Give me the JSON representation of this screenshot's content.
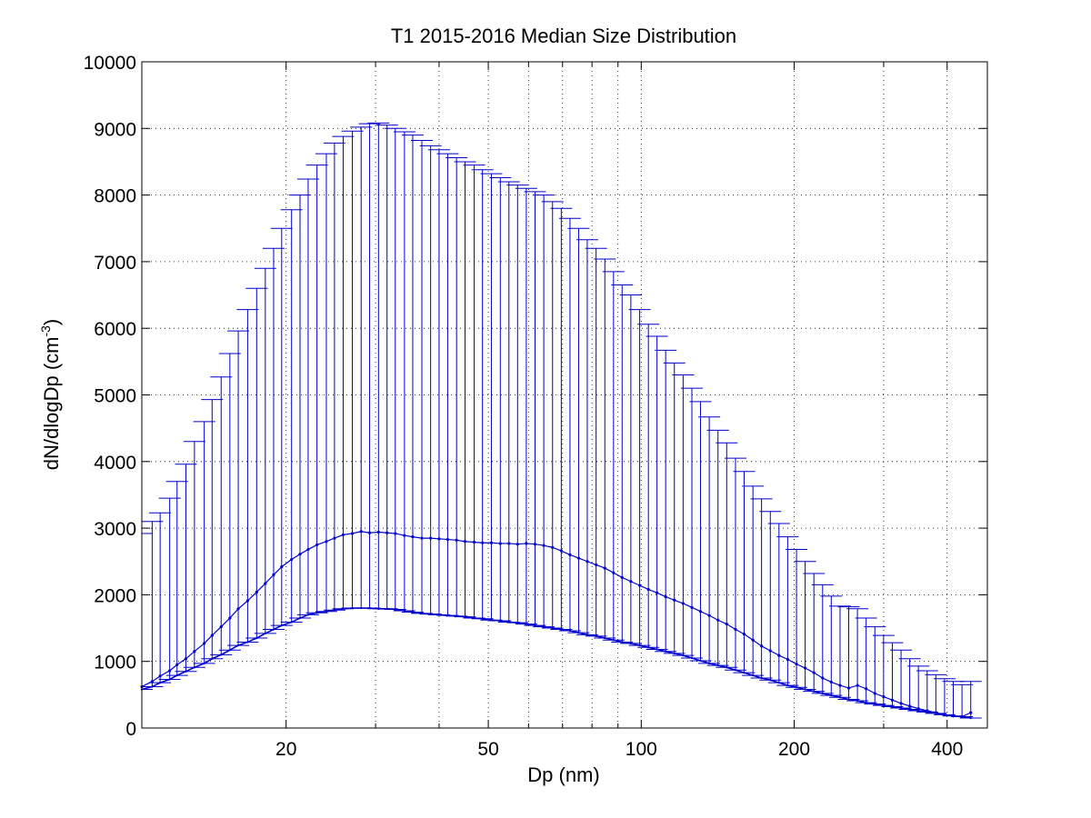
{
  "chart_data": {
    "type": "line",
    "title": "T1 2015-2016 Median Size Distribution",
    "xlabel": "Dp (nm)",
    "ylabel": "dN/dlogDp (cm",
    "ylabel_sup": "-3",
    "ylabel_close": ")",
    "x_scale": "log",
    "xlim": [
      10.4,
      480
    ],
    "ylim": [
      0,
      10000
    ],
    "x_ticks": [
      20,
      50,
      100,
      200,
      400
    ],
    "x_tick_labels": [
      "20",
      "50",
      "100",
      "200",
      "400"
    ],
    "y_ticks": [
      0,
      1000,
      2000,
      3000,
      4000,
      5000,
      6000,
      7000,
      8000,
      9000,
      10000
    ],
    "y_tick_labels": [
      "0",
      "1000",
      "2000",
      "3000",
      "4000",
      "5000",
      "6000",
      "7000",
      "8000",
      "9000",
      "10000"
    ],
    "grid": true,
    "colors": {
      "series": "#0000cc",
      "grid": "#000000",
      "axes": "#000000"
    },
    "series": [
      {
        "x": [
          10.4,
          10.9,
          11.3,
          11.8,
          12.2,
          12.7,
          13.2,
          13.8,
          14.3,
          14.9,
          15.5,
          16.1,
          16.8,
          17.5,
          18.2,
          18.9,
          19.6,
          20.5,
          21.3,
          22.1,
          23.0,
          24.0,
          24.9,
          25.9,
          27.0,
          28.1,
          29.2,
          30.4,
          31.6,
          32.8,
          34.2,
          35.5,
          37.0,
          38.5,
          40.0,
          41.6,
          43.3,
          45.0,
          46.9,
          48.7,
          50.7,
          52.8,
          54.9,
          57.1,
          59.4,
          61.8,
          64.3,
          66.9,
          69.6,
          72.4,
          75.3,
          78.3,
          81.5,
          84.8,
          88.2,
          91.7,
          95.4,
          99.3,
          103.3,
          107.4,
          111.7,
          116.2,
          120.9,
          125.8,
          130.8,
          136.1,
          141.6,
          147.3,
          153.3,
          159.4,
          165.9,
          172.5,
          179.5,
          186.7,
          194.2,
          202.1,
          210.2,
          218.7,
          227.5,
          236.6,
          246.2,
          256.1,
          266.4,
          277.1,
          288.3,
          299.9,
          312.0,
          324.6,
          337.6,
          351.2,
          365.4,
          380.1,
          395.4,
          411.3,
          427.9,
          445.2
        ],
        "median": [
          620,
          700,
          780,
          860,
          950,
          1040,
          1150,
          1270,
          1390,
          1520,
          1650,
          1790,
          1910,
          2040,
          2170,
          2300,
          2420,
          2530,
          2610,
          2680,
          2750,
          2800,
          2850,
          2900,
          2920,
          2950,
          2930,
          2940,
          2930,
          2920,
          2890,
          2870,
          2850,
          2850,
          2840,
          2830,
          2820,
          2800,
          2790,
          2780,
          2780,
          2770,
          2770,
          2760,
          2770,
          2760,
          2740,
          2710,
          2660,
          2600,
          2550,
          2500,
          2450,
          2400,
          2330,
          2260,
          2200,
          2140,
          2080,
          2030,
          1970,
          1920,
          1870,
          1810,
          1750,
          1690,
          1620,
          1560,
          1480,
          1410,
          1320,
          1230,
          1160,
          1090,
          1030,
          960,
          900,
          830,
          750,
          690,
          640,
          600,
          640,
          590,
          520,
          470,
          420,
          370,
          330,
          290,
          260,
          230,
          200,
          180,
          170,
          230
        ],
        "upper": [
          2920,
          3100,
          3230,
          3450,
          3700,
          3960,
          4300,
          4600,
          4930,
          5270,
          5620,
          5960,
          6280,
          6600,
          6900,
          7200,
          7500,
          7780,
          8000,
          8240,
          8450,
          8620,
          8780,
          8880,
          8960,
          9020,
          9070,
          9080,
          9050,
          9000,
          8950,
          8900,
          8820,
          8740,
          8680,
          8620,
          8560,
          8500,
          8450,
          8380,
          8320,
          8260,
          8200,
          8150,
          8100,
          8050,
          8000,
          7900,
          7800,
          7650,
          7500,
          7330,
          7200,
          7040,
          6850,
          6650,
          6500,
          6280,
          6060,
          5880,
          5670,
          5480,
          5300,
          5100,
          4900,
          4670,
          4470,
          4280,
          4050,
          3850,
          3630,
          3440,
          3250,
          3070,
          2870,
          2680,
          2500,
          2320,
          2150,
          1980,
          1830,
          1820,
          1790,
          1650,
          1520,
          1390,
          1280,
          1170,
          1040,
          930,
          860,
          800,
          740,
          700,
          650,
          700
        ],
        "lower": [
          580,
          620,
          680,
          730,
          790,
          850,
          910,
          970,
          1040,
          1100,
          1170,
          1240,
          1290,
          1350,
          1420,
          1480,
          1540,
          1590,
          1650,
          1700,
          1730,
          1750,
          1770,
          1790,
          1800,
          1800,
          1800,
          1790,
          1790,
          1780,
          1760,
          1740,
          1720,
          1710,
          1700,
          1690,
          1680,
          1670,
          1650,
          1640,
          1620,
          1610,
          1590,
          1580,
          1560,
          1540,
          1520,
          1500,
          1480,
          1460,
          1430,
          1400,
          1380,
          1350,
          1320,
          1290,
          1270,
          1240,
          1210,
          1180,
          1150,
          1120,
          1090,
          1050,
          1010,
          970,
          940,
          910,
          870,
          830,
          790,
          750,
          720,
          680,
          640,
          610,
          580,
          550,
          520,
          490,
          460,
          430,
          410,
          380,
          360,
          340,
          320,
          300,
          280,
          260,
          240,
          220,
          200,
          180,
          170,
          150
        ]
      }
    ]
  }
}
